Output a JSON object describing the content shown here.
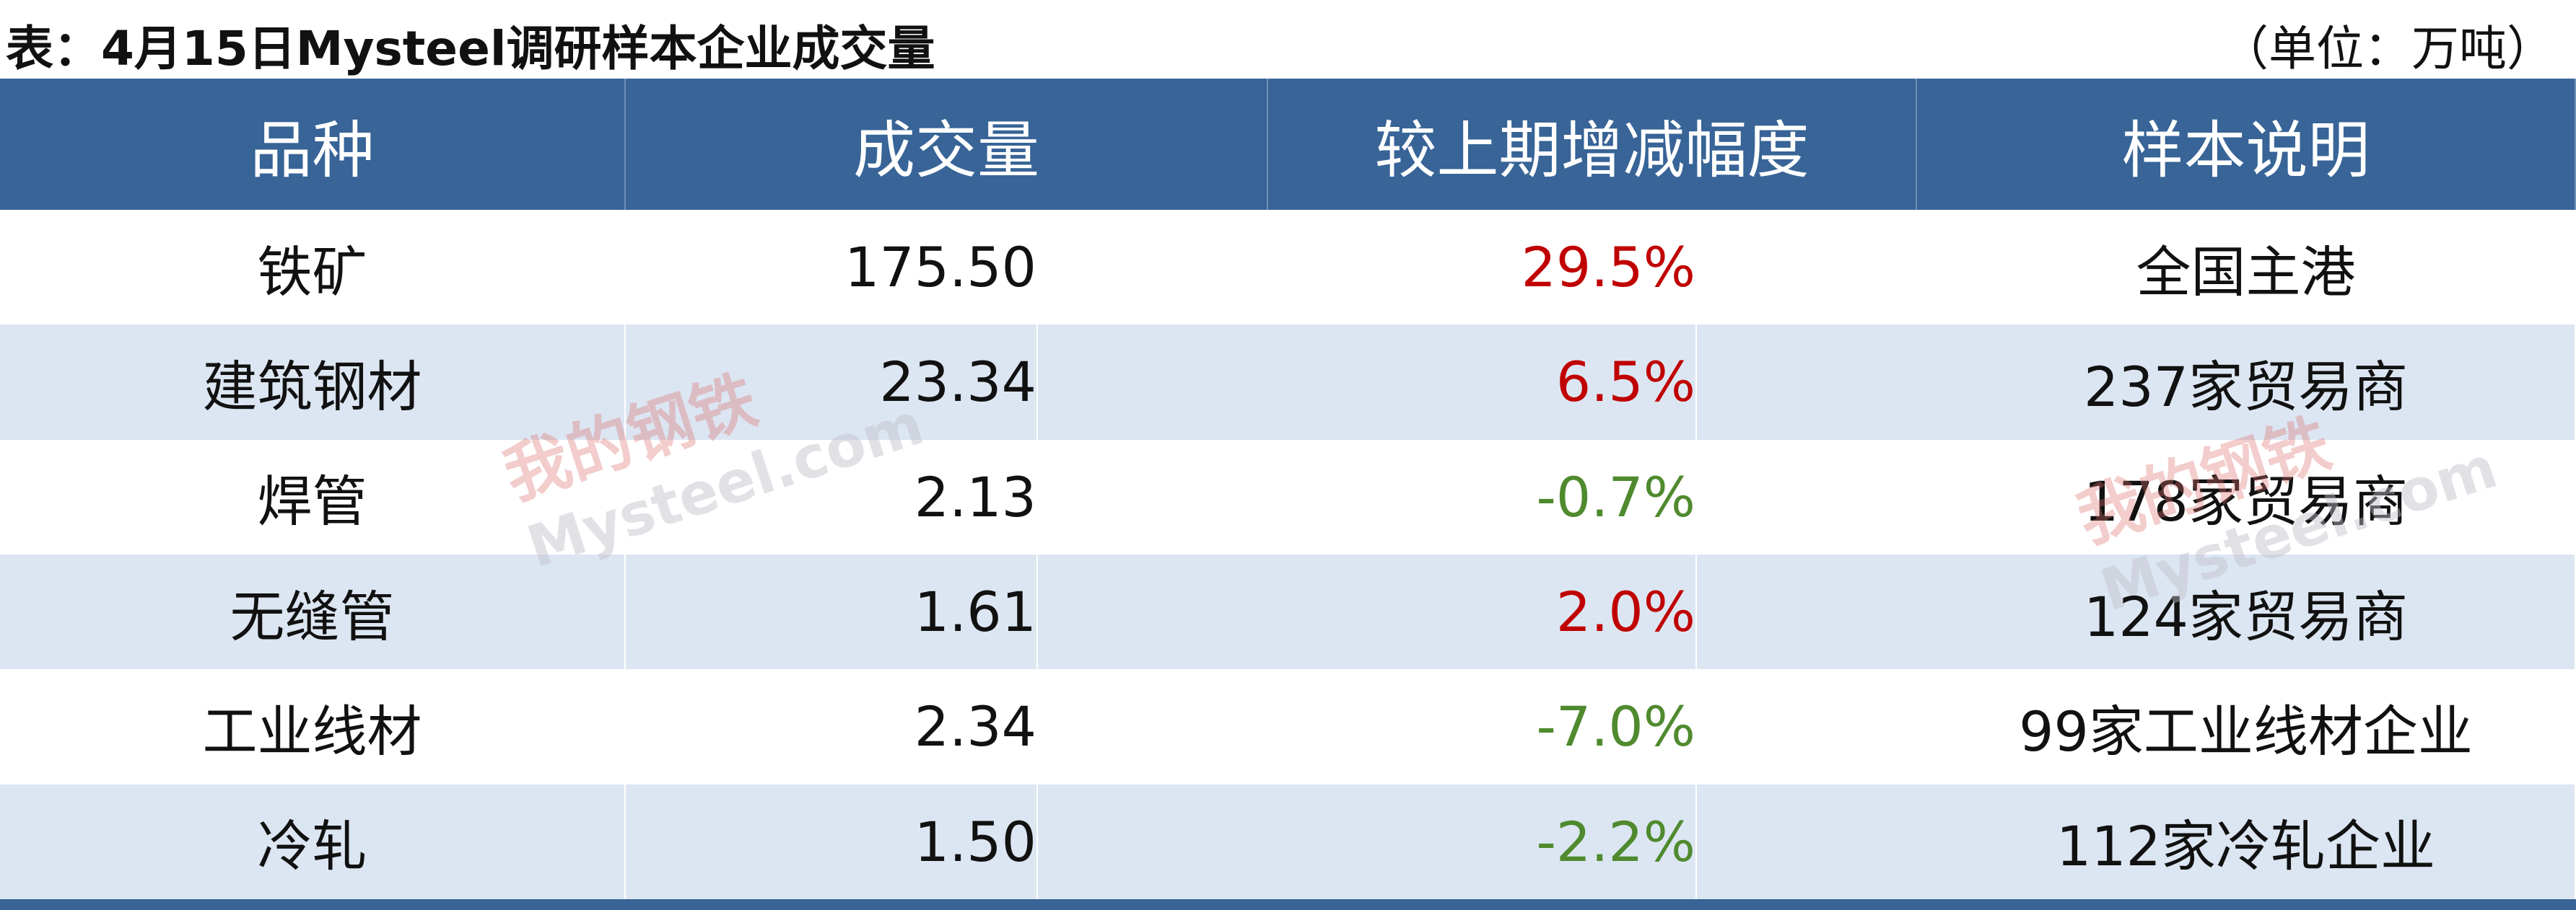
{
  "title": "表：4月15日Mysteel调研样本企业成交量",
  "unit": "（单位：万吨）",
  "watermark": {
    "top": "我的钢铁",
    "bottom": "Mysteel.com"
  },
  "table": {
    "header": [
      "品种",
      "成交量",
      "较上期增减幅度",
      "样本说明"
    ],
    "rows": [
      [
        "铁矿",
        "175.50",
        "29.5%",
        "全国主港"
      ],
      [
        "建筑钢材",
        "23.34",
        "6.5%",
        "237家贸易商"
      ],
      [
        "焊管",
        "2.13",
        "-0.7%",
        "178家贸易商"
      ],
      [
        "无缝管",
        "1.61",
        "2.0%",
        "124家贸易商"
      ],
      [
        "工业线材",
        "2.34",
        "-7.0%",
        "99家工业线材企业"
      ],
      [
        "冷轧",
        "1.50",
        "-2.2%",
        "112家冷轧企业"
      ]
    ],
    "change_colors": [
      "#c00000",
      "#c00000",
      "#4f8a2e",
      "#c00000",
      "#4f8a2e",
      "#4f8a2e"
    ]
  }
}
